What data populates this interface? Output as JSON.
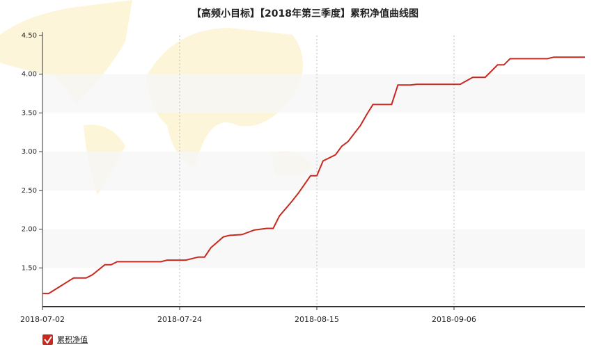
{
  "chart_data": {
    "type": "line",
    "title": "【高频小目标】【2018年第三季度】累积净值曲线图",
    "x": [
      "2018-07-02",
      "2018-07-03",
      "2018-07-05",
      "2018-07-06",
      "2018-07-07",
      "2018-07-09",
      "2018-07-10",
      "2018-07-12",
      "2018-07-13",
      "2018-07-14",
      "2018-07-21",
      "2018-07-22",
      "2018-07-25",
      "2018-07-27",
      "2018-07-28",
      "2018-07-29",
      "2018-07-31",
      "2018-08-01",
      "2018-08-03",
      "2018-08-04",
      "2018-08-05",
      "2018-08-07",
      "2018-08-08",
      "2018-08-09",
      "2018-08-11",
      "2018-08-12",
      "2018-08-14",
      "2018-08-15",
      "2018-08-16",
      "2018-08-18",
      "2018-08-19",
      "2018-08-20",
      "2018-08-22",
      "2018-08-23",
      "2018-08-24",
      "2018-08-27",
      "2018-08-28",
      "2018-08-30",
      "2018-08-31",
      "2018-09-07",
      "2018-09-09",
      "2018-09-11",
      "2018-09-13",
      "2018-09-14",
      "2018-09-15",
      "2018-09-21",
      "2018-09-22",
      "2018-09-27"
    ],
    "series": [
      {
        "name": "累积净值",
        "color": "#c8281e",
        "values": [
          1.17,
          1.17,
          1.27,
          1.32,
          1.37,
          1.37,
          1.41,
          1.54,
          1.54,
          1.58,
          1.58,
          1.6,
          1.6,
          1.64,
          1.64,
          1.76,
          1.9,
          1.92,
          1.93,
          1.96,
          1.99,
          2.01,
          2.01,
          2.17,
          2.36,
          2.46,
          2.69,
          2.69,
          2.88,
          2.96,
          3.07,
          3.13,
          3.34,
          3.48,
          3.61,
          3.61,
          3.86,
          3.86,
          3.87,
          3.87,
          3.96,
          3.96,
          4.12,
          4.12,
          4.2,
          4.2,
          4.22,
          4.22
        ]
      }
    ],
    "xlim": [
      "2018-07-02",
      "2018-09-27"
    ],
    "xticks": [
      "2018-07-02",
      "2018-07-24",
      "2018-08-15",
      "2018-09-06"
    ],
    "ylim": [
      1.0,
      4.5
    ],
    "yticks": [
      {
        "value": 1.5,
        "label": "1.50"
      },
      {
        "value": 2,
        "label": "2.00"
      },
      {
        "value": 2.5,
        "label": "2.50"
      },
      {
        "value": 3,
        "label": "3.00"
      },
      {
        "value": 3.5,
        "label": "3.50"
      },
      {
        "value": 4,
        "label": "4.00"
      },
      {
        "value": 4.5,
        "label": "4.50"
      }
    ],
    "grid": true,
    "legend": "bottom-left"
  }
}
